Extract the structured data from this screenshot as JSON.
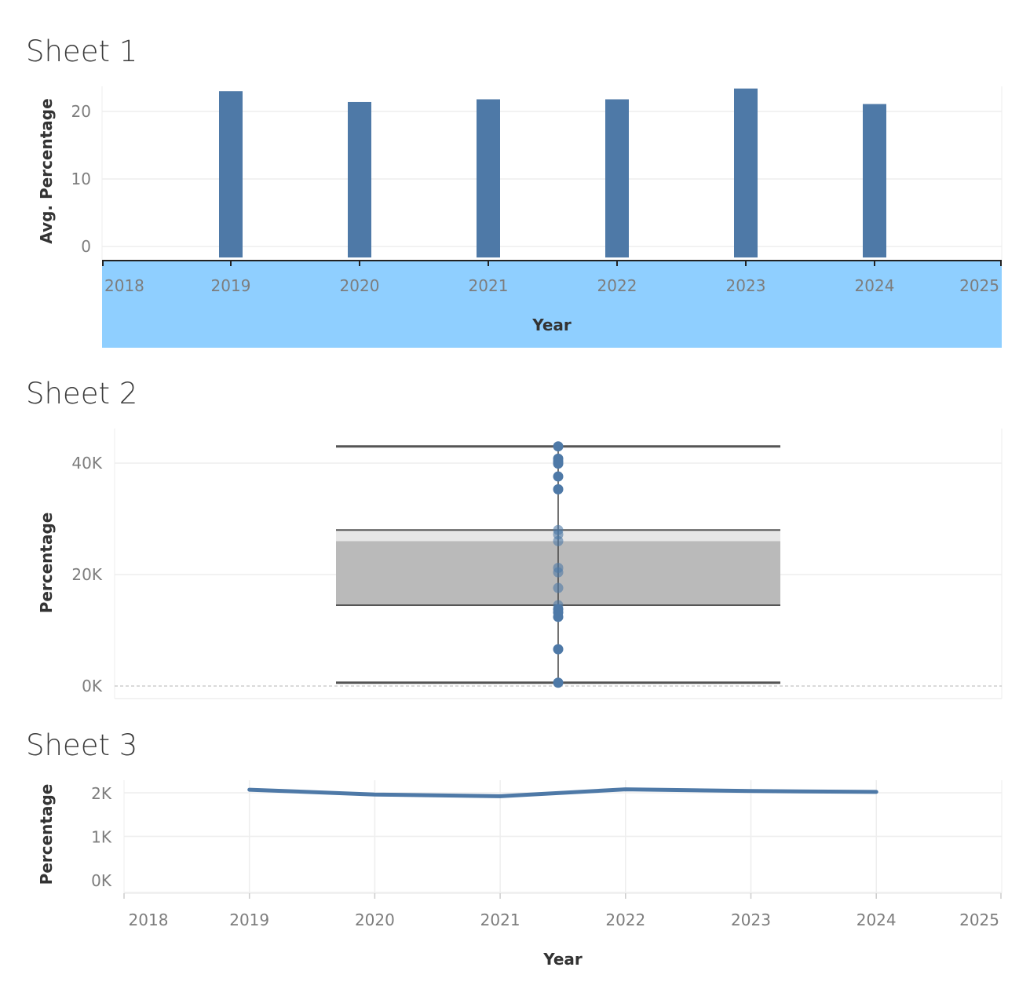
{
  "sheets": [
    {
      "title": "Sheet 1"
    },
    {
      "title": "Sheet 2"
    },
    {
      "title": "Sheet 3"
    }
  ],
  "colors": {
    "series": "#4e79a7",
    "highlight_band": "#8fcfff",
    "grid": "#eeeeee",
    "box_upper": "#e6e6e6",
    "box_lower": "#bababa"
  },
  "chart_data": [
    {
      "type": "bar",
      "sheet": "Sheet 1",
      "xlabel": "Year",
      "ylabel": "Avg. Percentage",
      "categories": [
        "2019",
        "2020",
        "2021",
        "2022",
        "2023",
        "2024"
      ],
      "values": [
        23.0,
        21.4,
        21.8,
        21.8,
        23.4,
        21.1
      ],
      "x_ticks": [
        "2018",
        "2019",
        "2020",
        "2021",
        "2022",
        "2023",
        "2024",
        "2025"
      ],
      "y_ticks": [
        "0",
        "10",
        "20"
      ],
      "ylim": [
        -2,
        25
      ],
      "grid": true
    },
    {
      "type": "box",
      "sheet": "Sheet 2",
      "ylabel": "Percentage",
      "y_ticks": [
        "0K",
        "20K",
        "40K"
      ],
      "ylim": [
        -2200,
        46000
      ],
      "whisker_low": 600,
      "q1": 14500,
      "median": 26000,
      "q3": 28000,
      "whisker_high": 43000,
      "points": [
        43000,
        40800,
        40300,
        39900,
        37600,
        35300,
        28000,
        27200,
        26000,
        21200,
        20400,
        17600,
        14500,
        13800,
        13200,
        12400,
        6600,
        600
      ],
      "grid": true
    },
    {
      "type": "line",
      "sheet": "Sheet 3",
      "xlabel": "Year",
      "ylabel": "Percentage",
      "x": [
        "2019",
        "2020",
        "2021",
        "2022",
        "2023",
        "2024"
      ],
      "values": [
        2070,
        1960,
        1920,
        2080,
        2040,
        2020
      ],
      "x_ticks": [
        "2018",
        "2019",
        "2020",
        "2021",
        "2022",
        "2023",
        "2024",
        "2025"
      ],
      "y_ticks": [
        "0K",
        "1K",
        "2K"
      ],
      "ylim": [
        -250,
        2250
      ],
      "grid": true
    }
  ]
}
